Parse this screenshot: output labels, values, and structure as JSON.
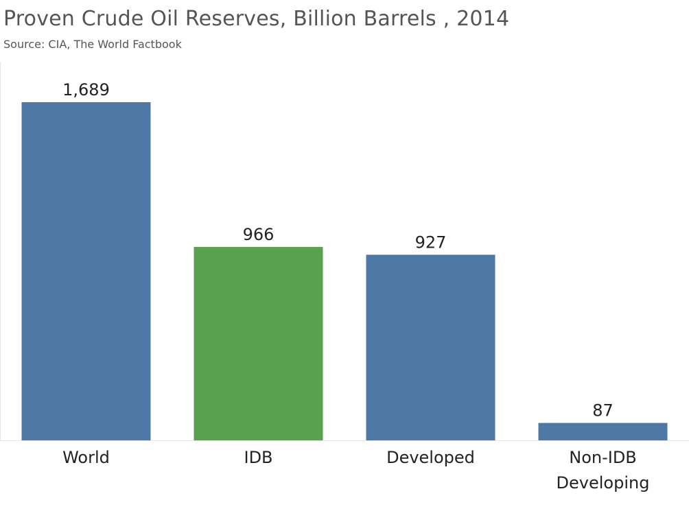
{
  "chart_data": {
    "type": "bar",
    "title": "Proven Crude Oil Reserves, Billion Barrels , 2014",
    "subtitle": "Source: CIA, The World Factbook",
    "categories": [
      [
        "World"
      ],
      [
        "IDB"
      ],
      [
        "Developed"
      ],
      [
        "Non-IDB",
        "Developing"
      ]
    ],
    "values": [
      1689,
      966,
      927,
      87
    ],
    "value_labels": [
      "1,689",
      "966",
      "927",
      "87"
    ],
    "bar_colors": [
      "#4e79a7",
      "#59a14f",
      "#4e79a7",
      "#4e79a7"
    ],
    "ylim": [
      0,
      1689
    ],
    "grid": false
  }
}
